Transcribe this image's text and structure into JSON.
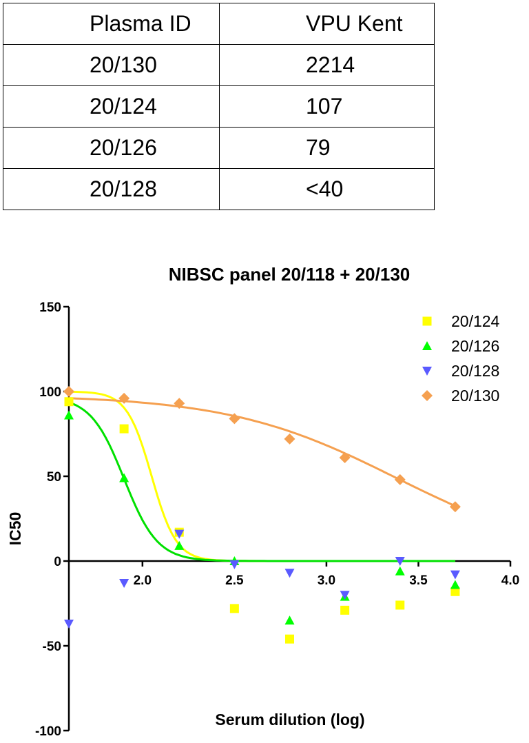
{
  "table": {
    "headers": [
      "Plasma ID",
      "VPU Kent"
    ],
    "rows": [
      [
        "20/130",
        "2214"
      ],
      [
        "20/124",
        "107"
      ],
      [
        "20/126",
        "79"
      ],
      [
        "20/128",
        "<40"
      ]
    ]
  },
  "chart_data": {
    "type": "scatter",
    "title": "NIBSC panel 20/118 + 20/130",
    "xlabel": "Serum dilution (log)",
    "ylabel": "IC50",
    "xlim": [
      1.6,
      4.0
    ],
    "ylim": [
      -100,
      150
    ],
    "xticks": [
      "2.0",
      "2.5",
      "3.0",
      "3.5",
      "4.0"
    ],
    "yticks": [
      "150",
      "100",
      "50",
      "0",
      "-50",
      "-100"
    ],
    "legend_position": "top-right",
    "series": [
      {
        "name": "20/124",
        "marker": "square",
        "color": "#ffff00",
        "curve_color": "#ffff00",
        "x": [
          1.6,
          1.9,
          2.2,
          2.5,
          2.8,
          3.1,
          3.4,
          3.7
        ],
        "y": [
          94,
          78,
          17,
          -28,
          -46,
          -29,
          -26,
          -18
        ],
        "fit": {
          "top": 100,
          "bottom": 0,
          "logec50": 2.05,
          "hill": -6.5
        }
      },
      {
        "name": "20/126",
        "marker": "triangle-up",
        "color": "#00ff00",
        "curve_color": "#00e000",
        "x": [
          1.6,
          1.9,
          2.2,
          2.5,
          2.8,
          3.1,
          3.4,
          3.7
        ],
        "y": [
          86,
          49,
          9,
          0,
          -35,
          -21,
          -6,
          -14
        ],
        "fit": {
          "top": 97,
          "bottom": 0,
          "logec50": 1.9,
          "hill": -4.8
        }
      },
      {
        "name": "20/128",
        "marker": "triangle-down",
        "color": "#5a5aff",
        "x": [
          1.6,
          1.9,
          2.2,
          2.5,
          2.8,
          3.1,
          3.4,
          3.7
        ],
        "y": [
          -37,
          -13,
          16,
          -2,
          -7,
          -20,
          0,
          -8
        ]
      },
      {
        "name": "20/130",
        "marker": "diamond",
        "color": "#f5a050",
        "curve_color": "#f5a050",
        "x": [
          1.6,
          1.9,
          2.2,
          2.5,
          2.8,
          3.1,
          3.4,
          3.7
        ],
        "y": [
          100,
          96,
          93,
          84,
          72,
          61,
          48,
          32
        ],
        "fit": {
          "top": 98,
          "bottom": 0,
          "logec50": 3.38,
          "hill": -0.95
        }
      }
    ]
  }
}
